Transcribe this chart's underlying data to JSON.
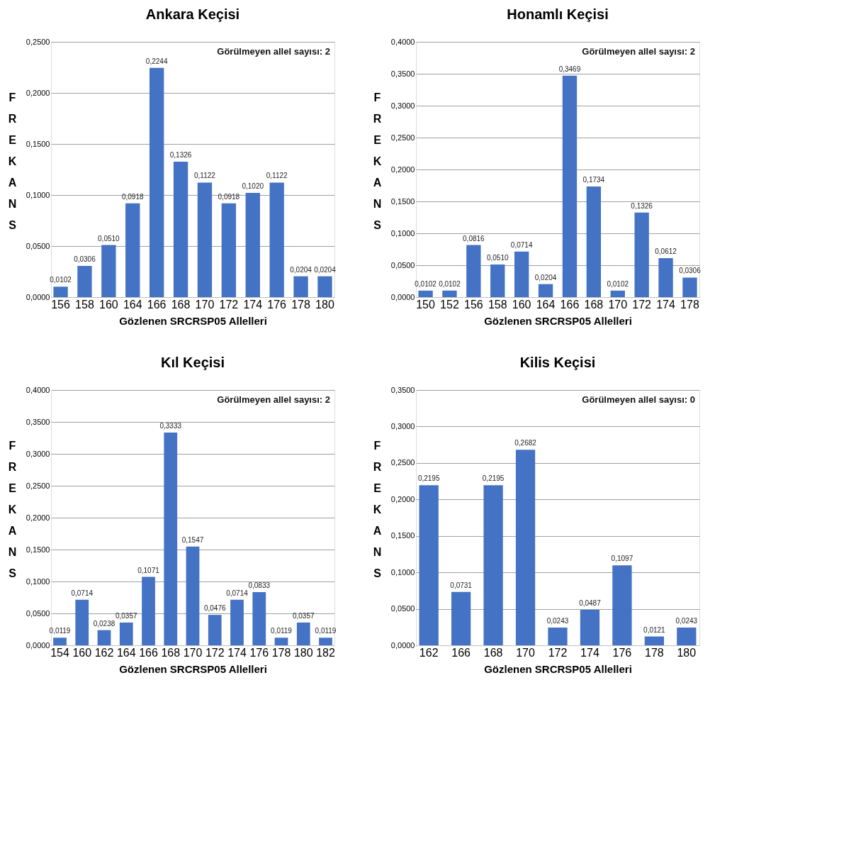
{
  "chart_data": [
    {
      "type": "bar",
      "title": "Ankara Keçisi",
      "xlabel": "Gözlenen SRCRSP05  Allelleri",
      "ylabel": "FREKANS",
      "annotations": [
        "Görülmeyen allel sayısı: 2"
      ],
      "color": "#4472c4",
      "grid": "y",
      "categories": [
        "156",
        "158",
        "160",
        "164",
        "166",
        "168",
        "170",
        "172",
        "174",
        "176",
        "178",
        "180"
      ],
      "values": [
        0.0102,
        0.0306,
        0.051,
        0.0918,
        0.2244,
        0.1326,
        0.1122,
        0.0918,
        0.102,
        0.1122,
        0.0204,
        0.0204
      ],
      "value_labels": [
        "0,0102",
        "0,0306",
        "0,0510",
        "0,0918",
        "0,2244",
        "0,1326",
        "0,1122",
        "0,0918",
        "0,1020",
        "0,1122",
        "0,0204",
        "0,0204"
      ],
      "ylim": [
        0,
        0.25
      ],
      "yticks": [
        {
          "value": 0,
          "label": "0,0000"
        },
        {
          "value": 0.05,
          "label": "0,0500"
        },
        {
          "value": 0.1,
          "label": "0,1000"
        },
        {
          "value": 0.15,
          "label": "0,1500"
        },
        {
          "value": 0.2,
          "label": "0,2000"
        },
        {
          "value": 0.25,
          "label": "0,2500"
        }
      ]
    },
    {
      "type": "bar",
      "title": "Honamlı Keçisi",
      "xlabel": "Gözlenen SRCRSP05  Allelleri",
      "ylabel": "FREKANS",
      "annotations": [
        "Görülmeyen allel sayısı: 2"
      ],
      "color": "#4472c4",
      "grid": "y",
      "categories": [
        "150",
        "152",
        "156",
        "158",
        "160",
        "164",
        "166",
        "168",
        "170",
        "172",
        "174",
        "178"
      ],
      "values": [
        0.0102,
        0.0102,
        0.0816,
        0.051,
        0.0714,
        0.0204,
        0.3469,
        0.1734,
        0.0102,
        0.1326,
        0.0612,
        0.0306
      ],
      "value_labels": [
        "0,0102",
        "0,0102",
        "0,0816",
        "0,0510",
        "0,0714",
        "0,0204",
        "0,3469",
        "0,1734",
        "0,0102",
        "0,1326",
        "0,0612",
        "0,0306"
      ],
      "ylim": [
        0,
        0.4
      ],
      "yticks": [
        {
          "value": 0,
          "label": "0,0000"
        },
        {
          "value": 0.05,
          "label": "0,0500"
        },
        {
          "value": 0.1,
          "label": "0,1000"
        },
        {
          "value": 0.15,
          "label": "0,1500"
        },
        {
          "value": 0.2,
          "label": "0,2000"
        },
        {
          "value": 0.25,
          "label": "0,2500"
        },
        {
          "value": 0.3,
          "label": "0,3000"
        },
        {
          "value": 0.35,
          "label": "0,3500"
        },
        {
          "value": 0.4,
          "label": "0,4000"
        }
      ]
    },
    {
      "type": "bar",
      "title": "Kıl Keçisi",
      "xlabel": "Gözlenen SRCRSP05  Allelleri",
      "ylabel": "FREKANS",
      "annotations": [
        "Görülmeyen allel sayısı: 2"
      ],
      "color": "#4472c4",
      "grid": "y",
      "categories": [
        "154",
        "160",
        "162",
        "164",
        "166",
        "168",
        "170",
        "172",
        "174",
        "176",
        "178",
        "180",
        "182"
      ],
      "values": [
        0.0119,
        0.0714,
        0.0238,
        0.0357,
        0.1071,
        0.3333,
        0.1547,
        0.0476,
        0.0714,
        0.0833,
        0.0119,
        0.0357,
        0.0119
      ],
      "value_labels": [
        "0,0119",
        "0,0714",
        "0,0238",
        "0,0357",
        "0,1071",
        "0,3333",
        "0,1547",
        "0,0476",
        "0,0714",
        "0,0833",
        "0,0119",
        "0,0357",
        "0,0119"
      ],
      "ylim": [
        0,
        0.4
      ],
      "yticks": [
        {
          "value": 0,
          "label": "0,0000"
        },
        {
          "value": 0.05,
          "label": "0,0500"
        },
        {
          "value": 0.1,
          "label": "0,1000"
        },
        {
          "value": 0.15,
          "label": "0,1500"
        },
        {
          "value": 0.2,
          "label": "0,2000"
        },
        {
          "value": 0.25,
          "label": "0,2500"
        },
        {
          "value": 0.3,
          "label": "0,3000"
        },
        {
          "value": 0.35,
          "label": "0,3500"
        },
        {
          "value": 0.4,
          "label": "0,4000"
        }
      ]
    },
    {
      "type": "bar",
      "title": "Kilis Keçisi",
      "xlabel": "Gözlenen SRCRSP05  Allelleri",
      "ylabel": "FREKANS",
      "annotations": [
        "Görülmeyen allel sayısı: 0"
      ],
      "color": "#4472c4",
      "grid": "y",
      "categories": [
        "162",
        "166",
        "168",
        "170",
        "172",
        "174",
        "176",
        "178",
        "180"
      ],
      "values": [
        0.2195,
        0.0731,
        0.2195,
        0.2682,
        0.0243,
        0.0487,
        0.1097,
        0.0121,
        0.0243
      ],
      "value_labels": [
        "0,2195",
        "0,0731",
        "0,2195",
        "0,2682",
        "0,0243",
        "0,0487",
        "0,1097",
        "0,0121",
        "0,0243"
      ],
      "ylim": [
        0,
        0.35
      ],
      "yticks": [
        {
          "value": 0,
          "label": "0,0000"
        },
        {
          "value": 0.05,
          "label": "0,0500"
        },
        {
          "value": 0.1,
          "label": "0,1000"
        },
        {
          "value": 0.15,
          "label": "0,1500"
        },
        {
          "value": 0.2,
          "label": "0,2000"
        },
        {
          "value": 0.25,
          "label": "0,2500"
        },
        {
          "value": 0.3,
          "label": "0,3000"
        },
        {
          "value": 0.35,
          "label": "0,3500"
        }
      ]
    }
  ]
}
